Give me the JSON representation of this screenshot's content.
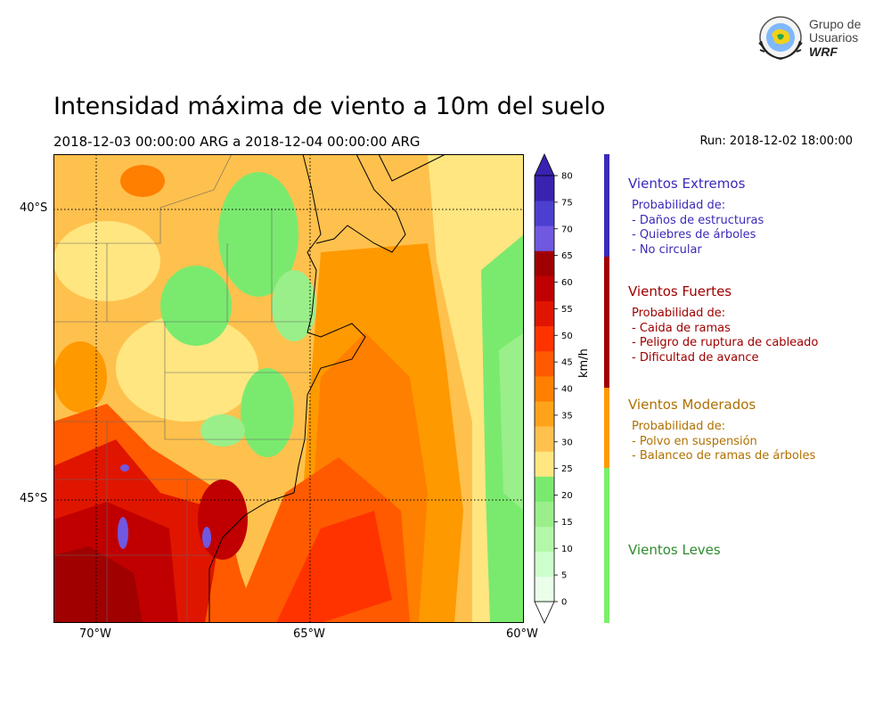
{
  "header": {
    "title": "Intensidad máxima de viento a 10m del suelo",
    "period": "2018-12-03 00:00:00 ARG  a  2018-12-04 00:00:00 ARG",
    "run": "Run: 2018-12-02 18:00:00"
  },
  "logo": {
    "line1": "Grupo de",
    "line2": "Usuarios",
    "line3": "WRF"
  },
  "map": {
    "lat_labels": [
      "40°S",
      "45°S"
    ],
    "lon_labels": [
      "70°W",
      "65°W",
      "60°W"
    ]
  },
  "colorbar": {
    "unit": "km/h",
    "ticks": [
      "0",
      "5",
      "10",
      "15",
      "20",
      "25",
      "30",
      "35",
      "40",
      "45",
      "50",
      "55",
      "60",
      "65",
      "70",
      "75",
      "80"
    ],
    "colors": [
      "#eaffea",
      "#ccffcc",
      "#b3f7a8",
      "#9aef8a",
      "#7aea6f",
      "#ffe680",
      "#ffc14d",
      "#ffa31a",
      "#ff7f00",
      "#ff5a00",
      "#ff3300",
      "#e01500",
      "#c00000",
      "#a00000",
      "#7058e0",
      "#4c3fd0",
      "#3a22b0"
    ],
    "under_color": "#ffffff",
    "over_color": "#3a22b0"
  },
  "legend": {
    "categories": [
      {
        "name": "Vientos Extremos",
        "color": "#3a2ab8",
        "text_color": "#3a2ab8",
        "lines": [
          "Probabilidad de:",
          "- Daños de estructuras",
          "- Quiebres de árboles",
          "- No circular"
        ]
      },
      {
        "name": "Vientos Fuertes",
        "color": "#a00000",
        "text_color": "#a00000",
        "lines": [
          "Probabilidad de:",
          "- Caida de ramas",
          "- Peligro de ruptura de cableado",
          "- Dificultad de avance"
        ]
      },
      {
        "name": "Vientos Moderados",
        "color": "#ff9900",
        "text_color": "#b07000",
        "lines": [
          "Probabilidad de:",
          "- Polvo en suspensión",
          "- Balanceo de ramas de árboles"
        ]
      },
      {
        "name": "Vientos Leves",
        "color": "#7aef6a",
        "text_color": "#2e8b2e",
        "lines": []
      }
    ]
  }
}
